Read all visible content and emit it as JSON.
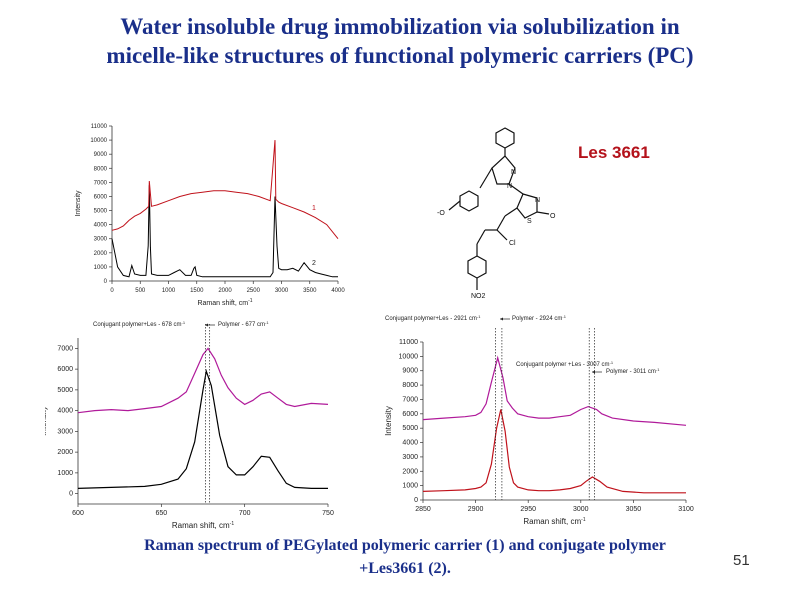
{
  "slide": {
    "title_line1": "Water insoluble drug immobilization via solubilization in",
    "title_line2": "micelle-like structures of functional polymeric carriers (PC)",
    "caption_line1": "Raman  spectrum  of PEGylated polymeric  carrier  (1) and  conjugate polymer",
    "caption_line2": "+Les3661 (2).",
    "page_number": "51"
  },
  "molecule": {
    "name": "Les 3661",
    "atoms": {
      "n1": "N",
      "n2": "N",
      "n3": "N",
      "s": "S",
      "o": "O",
      "o_minus": "-O",
      "cl": "Cl",
      "no2": "NO2"
    }
  },
  "colors": {
    "spectrum_1": "#000000",
    "spectrum_2_top": "#c0121b",
    "spectrum_2_mid": "#b01a9a",
    "spectrum_2_bottom": "#c0121b",
    "text_blue": "#1a2f8a",
    "label_red": "#b4121b"
  },
  "chart_data": [
    {
      "type": "line",
      "xlabel": "Raman shift, cm",
      "ylabel": "Intensity",
      "xlim": [
        0,
        4000
      ],
      "ylim": [
        0,
        11000
      ],
      "x_ticks": [
        "0",
        "500",
        "1000",
        "1500",
        "2000",
        "2500",
        "3000",
        "3500",
        "4000"
      ],
      "y_ticks": [
        "0",
        "1000",
        "2000",
        "3000",
        "4000",
        "5000",
        "6000",
        "7000",
        "8000",
        "9000",
        "10000",
        "11000"
      ],
      "series": [
        {
          "name": "1",
          "color": "#000000",
          "x": [
            0,
            100,
            200,
            300,
            350,
            400,
            500,
            600,
            640,
            660,
            680,
            700,
            800,
            900,
            1000,
            1100,
            1200,
            1300,
            1400,
            1450,
            1470,
            1500,
            1600,
            1800,
            2000,
            2200,
            2400,
            2600,
            2800,
            2850,
            2885,
            2920,
            2950,
            3000,
            3100,
            3200,
            3300,
            3400,
            3500,
            3600,
            3700,
            3800,
            3900,
            4000
          ],
          "y": [
            3000,
            1000,
            400,
            300,
            1100,
            500,
            400,
            400,
            2500,
            6800,
            2400,
            500,
            400,
            400,
            400,
            600,
            800,
            400,
            400,
            900,
            1000,
            400,
            300,
            300,
            300,
            300,
            300,
            300,
            300,
            600,
            6000,
            2500,
            900,
            800,
            800,
            900,
            700,
            1300,
            800,
            600,
            500,
            400,
            300,
            300
          ]
        },
        {
          "name": "2",
          "color": "#c0121b",
          "x": [
            0,
            100,
            200,
            300,
            400,
            500,
            600,
            650,
            660,
            700,
            800,
            1000,
            1200,
            1400,
            1600,
            1800,
            2000,
            2200,
            2400,
            2600,
            2800,
            2885,
            2900,
            2950,
            3000,
            3200,
            3400,
            3600,
            3800,
            4000
          ],
          "y": [
            3600,
            3700,
            3900,
            4300,
            4600,
            4800,
            5100,
            5300,
            7100,
            5300,
            5400,
            5700,
            6000,
            6200,
            6300,
            6400,
            6400,
            6300,
            6200,
            6000,
            5700,
            10000,
            5800,
            5600,
            5500,
            5200,
            4900,
            4500,
            4000,
            3000
          ]
        }
      ],
      "annotations": [
        "1",
        "2"
      ]
    },
    {
      "type": "line",
      "xlabel": "Raman shift, cm",
      "ylabel": "Intensity",
      "xlim": [
        600,
        750
      ],
      "ylim": [
        -500,
        7500
      ],
      "x_ticks": [
        "600",
        "650",
        "700",
        "750"
      ],
      "y_ticks": [
        "0",
        "1000",
        "2000",
        "3000",
        "4000",
        "5000",
        "6000",
        "7000"
      ],
      "annotations": [
        "Conjugant polymer+Les - 678 cm",
        "Polymer - 677 cm"
      ],
      "series": [
        {
          "name": "Polymer",
          "color": "#000000",
          "x": [
            600,
            620,
            640,
            650,
            660,
            665,
            670,
            675,
            677,
            680,
            685,
            690,
            695,
            700,
            705,
            710,
            715,
            720,
            725,
            730,
            740,
            750
          ],
          "y": [
            250,
            300,
            350,
            450,
            700,
            1200,
            2500,
            5000,
            5900,
            5200,
            2800,
            1300,
            900,
            900,
            1300,
            1800,
            1750,
            1100,
            500,
            300,
            250,
            250
          ]
        },
        {
          "name": "Conjugant polymer+Les",
          "color": "#b01a9a",
          "x": [
            600,
            610,
            620,
            630,
            640,
            650,
            660,
            665,
            670,
            675,
            678,
            682,
            686,
            690,
            695,
            700,
            705,
            710,
            715,
            720,
            725,
            730,
            740,
            750
          ],
          "y": [
            3900,
            4000,
            4050,
            4000,
            4100,
            4200,
            4600,
            4900,
            5800,
            6700,
            7000,
            6500,
            5700,
            5100,
            4600,
            4300,
            4500,
            4800,
            4900,
            4600,
            4300,
            4200,
            4350,
            4300
          ]
        }
      ]
    },
    {
      "type": "line",
      "xlabel": "Raman shift, cm",
      "ylabel": "Intensity",
      "xlim": [
        2850,
        3100
      ],
      "ylim": [
        0,
        11000
      ],
      "x_ticks": [
        "2850",
        "2900",
        "2950",
        "3000",
        "3050",
        "3100"
      ],
      "y_ticks": [
        "0",
        "1000",
        "2000",
        "3000",
        "4000",
        "5000",
        "6000",
        "7000",
        "8000",
        "9000",
        "10000",
        "11000"
      ],
      "annotations": [
        "Conjugant polymer+Les - 2921 cm",
        "Polymer - 2924 cm",
        "Conjugant polymer +Les - 3007 cm",
        "Polymer - 3011 cm"
      ],
      "series": [
        {
          "name": "Conjugant polymer+Les",
          "color": "#b01a9a",
          "x": [
            2850,
            2870,
            2890,
            2900,
            2905,
            2910,
            2915,
            2921,
            2926,
            2930,
            2935,
            2940,
            2950,
            2960,
            2970,
            2980,
            2990,
            3000,
            3007,
            3015,
            3020,
            3030,
            3050,
            3070,
            3100
          ],
          "y": [
            5600,
            5700,
            5800,
            5900,
            6100,
            6700,
            8200,
            9900,
            8500,
            6900,
            6400,
            6000,
            5800,
            5700,
            5700,
            5800,
            5900,
            6300,
            6500,
            6300,
            6000,
            5700,
            5500,
            5400,
            5200
          ]
        },
        {
          "name": "Polymer",
          "color": "#c0121b",
          "x": [
            2850,
            2870,
            2890,
            2900,
            2905,
            2910,
            2915,
            2920,
            2924,
            2928,
            2932,
            2936,
            2940,
            2950,
            2960,
            2970,
            2980,
            2990,
            3000,
            3005,
            3011,
            3018,
            3025,
            3040,
            3060,
            3080,
            3100
          ],
          "y": [
            600,
            650,
            700,
            800,
            900,
            1200,
            2500,
            5000,
            6300,
            4800,
            2300,
            1200,
            900,
            700,
            650,
            650,
            700,
            800,
            1000,
            1300,
            1600,
            1300,
            900,
            600,
            500,
            500,
            500
          ]
        }
      ]
    }
  ]
}
